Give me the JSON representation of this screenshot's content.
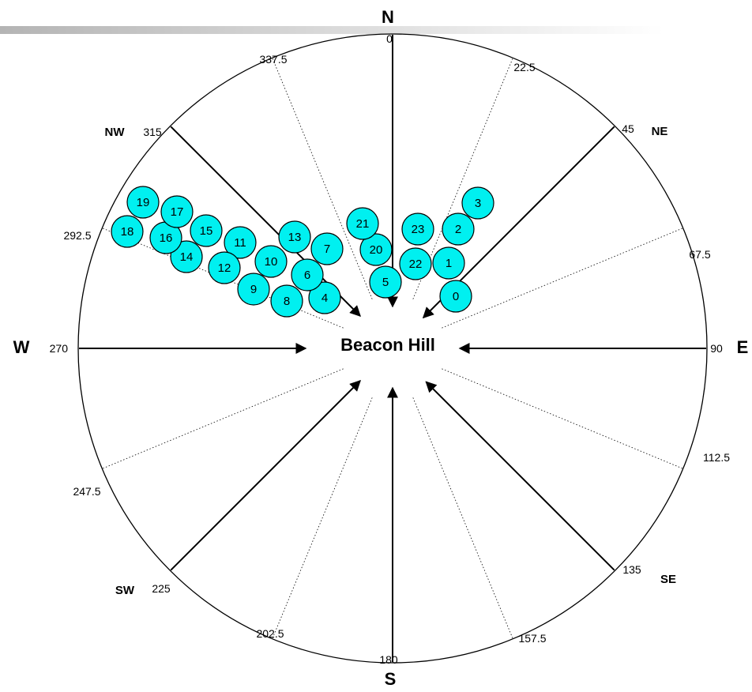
{
  "center_label": "Beacon Hill",
  "bubble_color": "#00f0f0",
  "cardinals": [
    {
      "label": "N",
      "deg": 0
    },
    {
      "label": "E",
      "deg": 90
    },
    {
      "label": "S",
      "deg": 180
    },
    {
      "label": "W",
      "deg": 270
    }
  ],
  "intercardinals": [
    {
      "label": "NE",
      "deg": 45
    },
    {
      "label": "SE",
      "deg": 135
    },
    {
      "label": "SW",
      "deg": 225
    },
    {
      "label": "NW",
      "deg": 315
    }
  ],
  "degree_labels": [
    "0",
    "22.5",
    "45",
    "67.5",
    "90",
    "112.5",
    "135",
    "157.5",
    "180",
    "202.5",
    "225",
    "247.5",
    "270",
    "292.5",
    "315",
    "337.5"
  ],
  "bubbles": [
    {
      "label": "0"
    },
    {
      "label": "1"
    },
    {
      "label": "2"
    },
    {
      "label": "3"
    },
    {
      "label": "4"
    },
    {
      "label": "5"
    },
    {
      "label": "6"
    },
    {
      "label": "7"
    },
    {
      "label": "8"
    },
    {
      "label": "9"
    },
    {
      "label": "10"
    },
    {
      "label": "11"
    },
    {
      "label": "12"
    },
    {
      "label": "13"
    },
    {
      "label": "14"
    },
    {
      "label": "15"
    },
    {
      "label": "16"
    },
    {
      "label": "17"
    },
    {
      "label": "18"
    },
    {
      "label": "19"
    },
    {
      "label": "20"
    },
    {
      "label": "21"
    },
    {
      "label": "22"
    },
    {
      "label": "23"
    }
  ]
}
